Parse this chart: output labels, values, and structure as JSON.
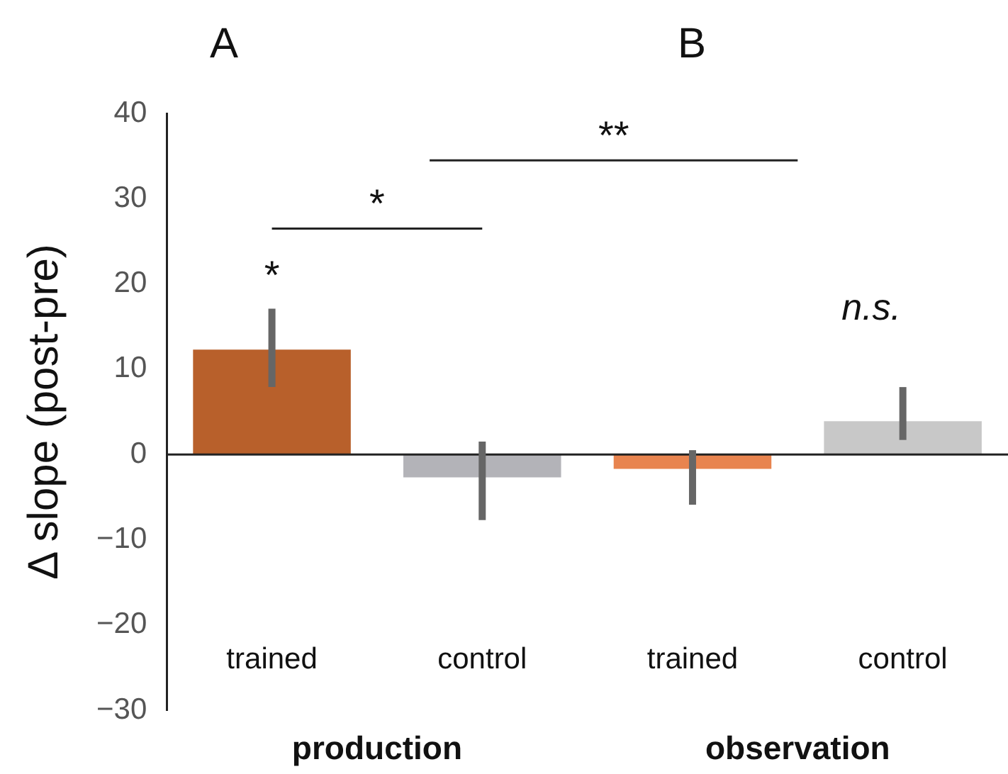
{
  "chart_data": {
    "type": "bar",
    "ylabel": "Δ slope (post-pre)",
    "categories": [
      "trained",
      "control",
      "trained",
      "control"
    ],
    "values": [
      12.3,
      -2.7,
      -1.7,
      3.9
    ],
    "colors": [
      "#b8602b",
      "#b3b3b8",
      "#e8844f",
      "#c8c8c8"
    ],
    "errors": [
      [
        7.9,
        17.1
      ],
      [
        -7.7,
        1.5
      ],
      [
        -5.9,
        0.5
      ],
      [
        1.7,
        7.9
      ]
    ],
    "ylim": [
      -30,
      40
    ],
    "yticks": [
      -30,
      -20,
      -10,
      0,
      10,
      20,
      30,
      40
    ],
    "annotations": [
      "A",
      "B",
      "*",
      "*",
      "**",
      "n.s.",
      "production",
      "observation"
    ]
  }
}
